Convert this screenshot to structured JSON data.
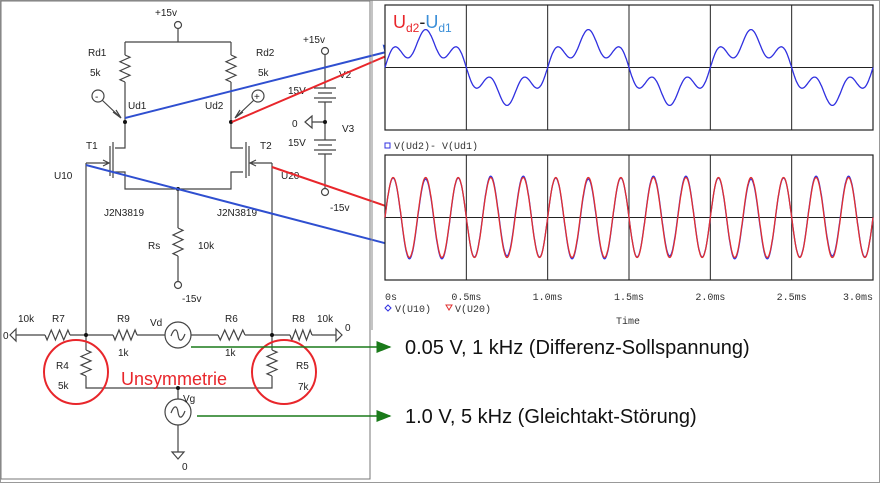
{
  "schematic": {
    "supply_pos": "+15v",
    "supply_neg": "-15v",
    "rd1": {
      "name": "Rd1",
      "value": "5k"
    },
    "rd2": {
      "name": "Rd2",
      "value": "5k"
    },
    "ud1": "Ud1",
    "ud2": "Ud2",
    "probe_minus": "-",
    "probe_plus": "+",
    "t1": "T1",
    "t2": "T2",
    "t1_model": "J2N3819",
    "t2_model": "J2N3819",
    "u10": "U10",
    "u20": "U20",
    "rs": {
      "name": "Rs",
      "value": "10k"
    },
    "v2": {
      "name": "V2",
      "value": "15V"
    },
    "v3": {
      "name": "V3",
      "value": "15V"
    },
    "gnd": "0",
    "r7": {
      "name": "R7",
      "value": "10k"
    },
    "r9": {
      "name": "R9",
      "value": "1k"
    },
    "vd": "Vd",
    "r6": {
      "name": "R6",
      "value": "1k"
    },
    "r8": {
      "name": "R8",
      "value": "10k"
    },
    "r4": {
      "name": "R4",
      "value": "5k"
    },
    "r5": {
      "name": "R5",
      "value": "7k"
    },
    "vg": "Vg",
    "asymmetry_label": "Unsymmetrie"
  },
  "annotations": {
    "vd_note": "0.05 V, 1 kHz (Differenz-Sollspannung)",
    "vg_note": "1.0 V, 5 kHz (Gleichtakt-Störung)",
    "diff_title": {
      "u1": "U",
      "sub1": "d2",
      "dash": "-",
      "u2": "U",
      "sub2": "d1"
    }
  },
  "colors": {
    "red": "#e8262b",
    "blue": "#2f4fd0",
    "label_blue": "#3b8fd8",
    "green": "#1a7a1a",
    "trace_blue": "#3030e0",
    "trace_red": "#e03030"
  },
  "chart_data": [
    {
      "type": "line",
      "xlim_ms": [
        0,
        3.0
      ],
      "legend": [
        {
          "marker": "square",
          "name": "V(Ud2)- V(Ud1)"
        }
      ],
      "series": [
        {
          "name": "V(Ud2)- V(Ud1)",
          "components": [
            {
              "freq_khz": 1,
              "rel_amp": 1.0
            },
            {
              "freq_khz": 5,
              "rel_amp": 0.43
            }
          ]
        }
      ],
      "grid": true
    },
    {
      "type": "line",
      "xlim_ms": [
        0,
        3.0
      ],
      "x_ticks": [
        "0s",
        "0.5ms",
        "1.0ms",
        "1.5ms",
        "2.0ms",
        "2.5ms",
        "3.0ms"
      ],
      "xlabel": "Time",
      "legend": [
        {
          "marker": "diamond",
          "name": "V(U10)"
        },
        {
          "marker": "triangle",
          "name": "V(U20)"
        }
      ],
      "series": [
        {
          "name": "V(U10)",
          "components": [
            {
              "freq_khz": 5,
              "rel_amp": 1.0
            },
            {
              "freq_khz": 1,
              "rel_amp": -0.04
            }
          ]
        },
        {
          "name": "V(U20)",
          "components": [
            {
              "freq_khz": 5,
              "rel_amp": 1.0
            }
          ]
        }
      ],
      "grid": true
    }
  ]
}
